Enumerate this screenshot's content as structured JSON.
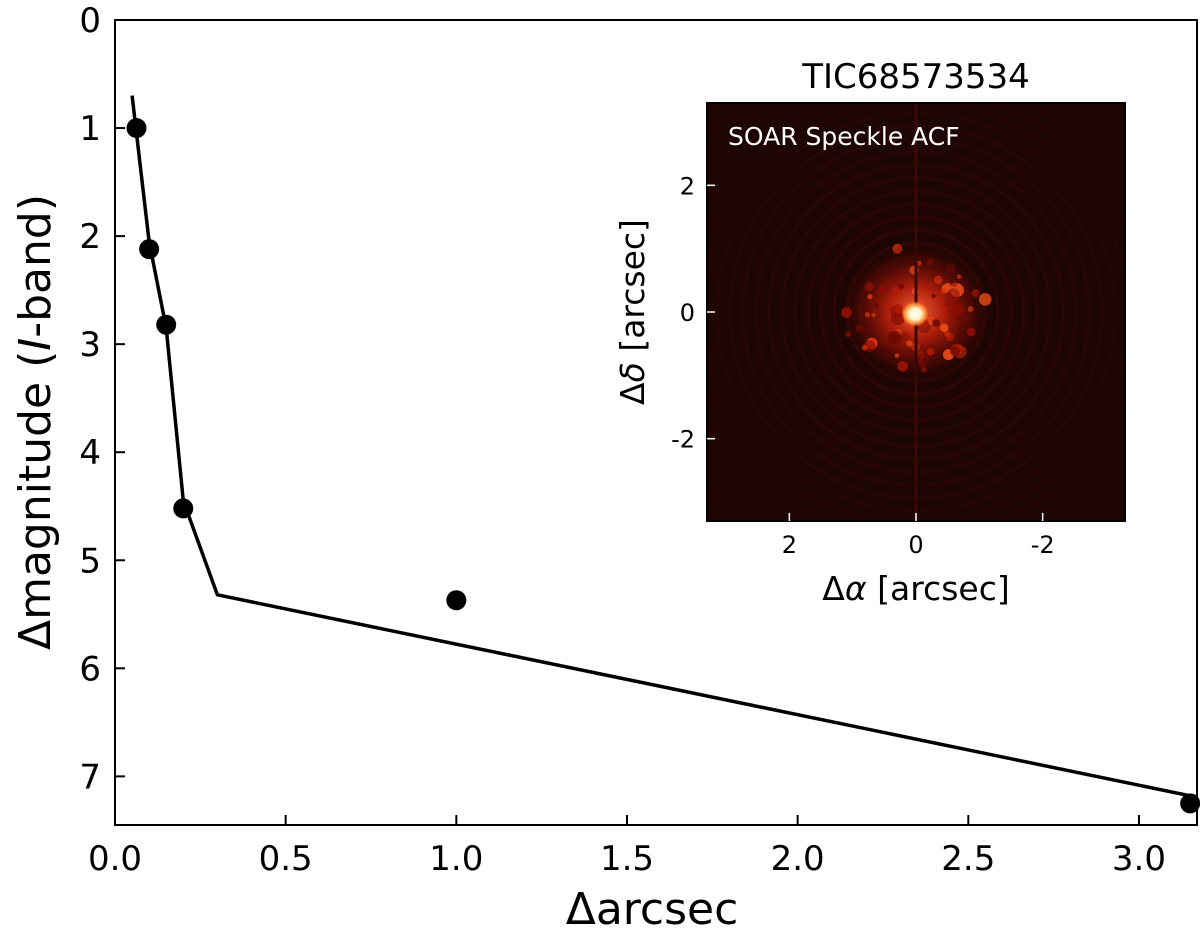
{
  "chart_data": [
    {
      "type": "scatter",
      "xlabel": "Δarcsec",
      "ylabel_prefix": "Δmagnitude (",
      "ylabel_italic": "I",
      "ylabel_suffix": "-band)",
      "xlim": [
        0.0,
        3.17
      ],
      "ylim": [
        7.45,
        0.0
      ],
      "y_inverted": true,
      "x_ticks": [
        0.0,
        0.5,
        1.0,
        1.5,
        2.0,
        2.5,
        3.0
      ],
      "x_tick_labels": [
        "0.0",
        "0.5",
        "1.0",
        "1.5",
        "2.0",
        "2.5",
        "3.0"
      ],
      "y_ticks": [
        0,
        1,
        2,
        3,
        4,
        5,
        6,
        7
      ],
      "y_tick_labels": [
        "0",
        "1",
        "2",
        "3",
        "4",
        "5",
        "6",
        "7"
      ],
      "grid": false,
      "points": [
        {
          "x": 0.063,
          "y": 1.0
        },
        {
          "x": 0.1,
          "y": 2.12
        },
        {
          "x": 0.15,
          "y": 2.82
        },
        {
          "x": 0.2,
          "y": 4.52
        },
        {
          "x": 1.0,
          "y": 5.37
        },
        {
          "x": 3.15,
          "y": 7.25
        }
      ],
      "contrast_curve": [
        {
          "x": 0.05,
          "y": 0.7
        },
        {
          "x": 0.1,
          "y": 2.05
        },
        {
          "x": 0.15,
          "y": 2.85
        },
        {
          "x": 0.2,
          "y": 4.45
        },
        {
          "x": 0.3,
          "y": 5.32
        },
        {
          "x": 3.15,
          "y": 7.18
        }
      ],
      "point_color": "#000000",
      "line_color": "#000000"
    },
    {
      "type": "heatmap",
      "title": "TIC68573534",
      "annotation": "SOAR Speckle ACF",
      "xlabel_prefix": "Δ",
      "xlabel_symbol": "α",
      "xlabel_suffix": " [arcsec]",
      "ylabel_prefix": "Δ",
      "ylabel_symbol": "δ",
      "ylabel_suffix": " [arcsec]",
      "xlim": [
        3.3,
        -3.3
      ],
      "ylim": [
        -3.3,
        3.3
      ],
      "x_ticks": [
        2,
        0,
        -2
      ],
      "x_tick_labels": [
        "2",
        "0",
        "-2"
      ],
      "y_ticks": [
        2,
        0,
        -2
      ],
      "y_tick_labels": [
        "2",
        "0",
        "-2"
      ],
      "colormap": [
        "#000000",
        "#5a0000",
        "#c01a0a",
        "#ff7a30",
        "#ffffff"
      ],
      "background_color": "#1c0503"
    }
  ]
}
